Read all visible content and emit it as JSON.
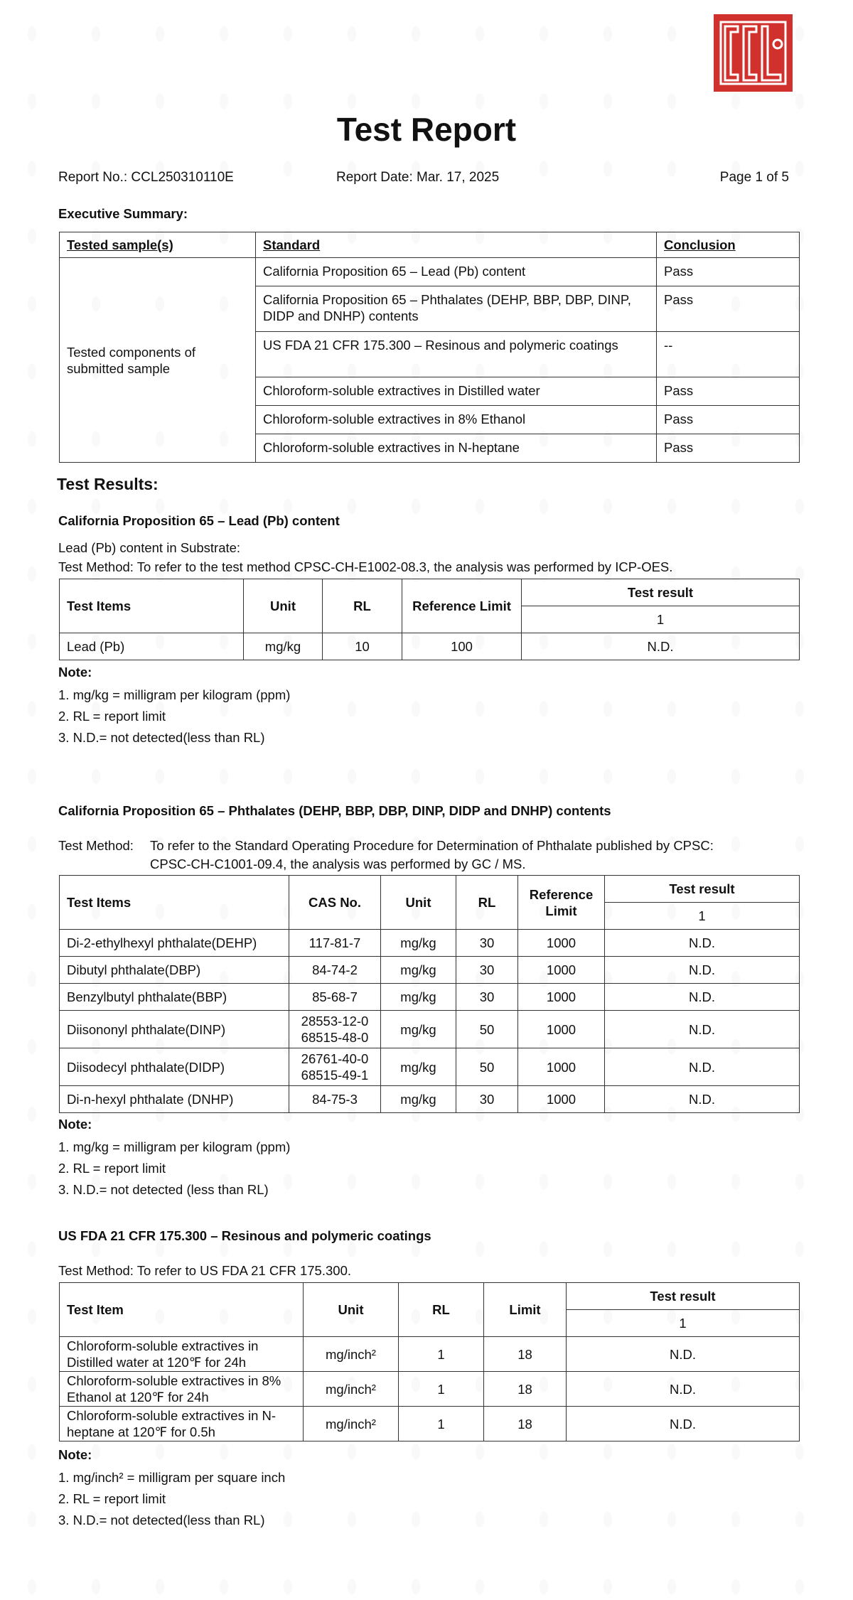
{
  "header": {
    "logo_text": "CCL",
    "title": "Test Report",
    "report_no": "Report No.: CCL250310110E",
    "report_date": "Report Date: Mar. 17, 2025",
    "page": "Page 1 of 5"
  },
  "summary": {
    "heading": "Executive Summary:",
    "columns": [
      "Tested sample(s)",
      "Standard",
      "Conclusion"
    ],
    "sample": "Tested components of submitted sample",
    "rows": [
      {
        "standard": "California Proposition 65 – Lead (Pb) content",
        "conclusion": "Pass"
      },
      {
        "standard": "California Proposition 65 – Phthalates (DEHP, BBP, DBP, DINP, DIDP and DNHP) contents",
        "conclusion": "Pass"
      },
      {
        "standard": "US FDA 21 CFR 175.300 – Resinous and polymeric coatings",
        "conclusion": "--"
      },
      {
        "standard": "Chloroform-soluble extractives in Distilled water",
        "conclusion": "Pass"
      },
      {
        "standard": "Chloroform-soluble extractives in 8% Ethanol",
        "conclusion": "Pass"
      },
      {
        "standard": "Chloroform-soluble extractives in N-heptane",
        "conclusion": "Pass"
      }
    ]
  },
  "results_heading": "Test Results:",
  "lead": {
    "heading": "California Proposition 65 – Lead (Pb) content",
    "intro": "Lead (Pb) content in Substrate:",
    "method": "Test Method: To refer to the test method CPSC-CH-E1002-08.3, the analysis was performed by ICP-OES.",
    "columns": [
      "Test Items",
      "Unit",
      "RL",
      "Reference Limit",
      "Test result",
      "1"
    ],
    "rows": [
      [
        "Lead (Pb)",
        "mg/kg",
        "10",
        "100",
        "N.D."
      ]
    ],
    "note_label": "Note:",
    "notes": [
      "1. mg/kg = milligram per kilogram (ppm)",
      "2. RL = report limit",
      "3. N.D.= not detected(less than RL)"
    ]
  },
  "phthalates": {
    "heading": "California Proposition 65 – Phthalates (DEHP, BBP, DBP, DINP, DIDP and DNHP) contents",
    "method_label": "Test Method:",
    "method_line1": "To refer to the Standard Operating Procedure for Determination of Phthalate published by CPSC:",
    "method_line2": "CPSC-CH-C1001-09.4, the analysis was performed by GC / MS.",
    "columns": [
      "Test Items",
      "CAS No.",
      "Unit",
      "RL",
      "Reference Limit",
      "Test result",
      "1"
    ],
    "rows": [
      [
        "Di-2-ethylhexyl phthalate(DEHP)",
        "117-81-7",
        "mg/kg",
        "30",
        "1000",
        "N.D."
      ],
      [
        "Dibutyl phthalate(DBP)",
        "84-74-2",
        "mg/kg",
        "30",
        "1000",
        "N.D."
      ],
      [
        "Benzylbutyl phthalate(BBP)",
        "85-68-7",
        "mg/kg",
        "30",
        "1000",
        "N.D."
      ],
      [
        "Diisononyl phthalate(DINP)",
        "28553-12-0\n68515-48-0",
        "mg/kg",
        "50",
        "1000",
        "N.D."
      ],
      [
        "Diisodecyl phthalate(DIDP)",
        "26761-40-0\n68515-49-1",
        "mg/kg",
        "50",
        "1000",
        "N.D."
      ],
      [
        "Di-n-hexyl phthalate (DNHP)",
        "84-75-3",
        "mg/kg",
        "30",
        "1000",
        "N.D."
      ]
    ],
    "note_label": "Note:",
    "notes": [
      "1. mg/kg = milligram per kilogram (ppm)",
      "2. RL = report limit",
      "3. N.D.= not detected (less than RL)"
    ]
  },
  "fda": {
    "heading": "US FDA 21 CFR 175.300 – Resinous and polymeric coatings",
    "method": "Test Method: To refer to US FDA 21 CFR 175.300.",
    "columns": [
      "Test Item",
      "Unit",
      "RL",
      "Limit",
      "Test result",
      "1"
    ],
    "rows": [
      [
        "Chloroform-soluble extractives in Distilled water at 120℉ for 24h",
        "mg/inch²",
        "1",
        "18",
        "N.D."
      ],
      [
        "Chloroform-soluble extractives in 8% Ethanol at 120℉ for 24h",
        "mg/inch²",
        "1",
        "18",
        "N.D."
      ],
      [
        "Chloroform-soluble extractives in N-heptane at 120℉ for 0.5h",
        "mg/inch²",
        "1",
        "18",
        "N.D."
      ]
    ],
    "note_label": "Note:",
    "notes": [
      "1. mg/inch² = milligram per square inch",
      "2. RL = report limit",
      "3. N.D.= not detected(less than RL)"
    ]
  },
  "colors": {
    "logo": "#d0312d",
    "text": "#111111",
    "border": "#333333"
  }
}
